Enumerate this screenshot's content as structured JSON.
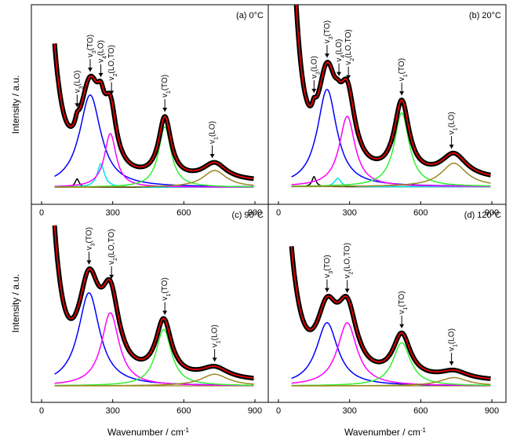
{
  "figure": {
    "xlabel": "Wavenumber / cm",
    "xlabel_sup": "-1",
    "ylabel": "Intensity / a.u."
  },
  "chart_data": [
    {
      "type": "line",
      "panel": "(a) 0°C",
      "title": "(a) 0°C",
      "xlabel": "Wavenumber / cm-1",
      "ylabel": "Intensity / a.u.",
      "xlim": [
        0,
        900
      ],
      "xticks": [
        0,
        300,
        600,
        900
      ],
      "yticks": "none",
      "grid": false,
      "annotations": [
        {
          "sub": "3",
          "mode": "(LO)",
          "x": 150
        },
        {
          "sub": "3",
          "mode": "(TO)",
          "x": 205
        },
        {
          "sub": "4",
          "mode": "(LO)",
          "x": 250
        },
        {
          "sub": "2",
          "mode": "(LO,TO)",
          "x": 295
        },
        {
          "sub": "1",
          "mode": "(TO)",
          "x": 520
        },
        {
          "sub": "1",
          "mode": "(LO)",
          "x": 720
        }
      ],
      "baseline": 0.05,
      "fit_peaks": [
        {
          "color": "#000000",
          "center": 150,
          "width": 10,
          "height": 0.05
        },
        {
          "color": "#0000ff",
          "center": 205,
          "width": 55,
          "height": 0.55
        },
        {
          "color": "#00e5e5",
          "center": 250,
          "width": 18,
          "height": 0.14
        },
        {
          "color": "#ff00ff",
          "center": 290,
          "width": 30,
          "height": 0.32
        },
        {
          "color": "#33ee33",
          "center": 520,
          "width": 32,
          "height": 0.36
        },
        {
          "color": "#998822",
          "center": 730,
          "width": 60,
          "height": 0.1
        }
      ]
    },
    {
      "type": "line",
      "panel": "(b) 20°C",
      "title": "(b) 20°C",
      "xlabel": "Wavenumber / cm-1",
      "ylabel": "",
      "xlim": [
        0,
        900
      ],
      "xticks": [
        0,
        300,
        600,
        900
      ],
      "yticks": "none",
      "grid": false,
      "annotations": [
        {
          "sub": "3",
          "mode": "(LO)",
          "x": 150
        },
        {
          "sub": "3",
          "mode": "(TO)",
          "x": 205
        },
        {
          "sub": "4",
          "mode": "(LO)",
          "x": 255
        },
        {
          "sub": "2",
          "mode": "(LO,TO)",
          "x": 295
        },
        {
          "sub": "1",
          "mode": "(TO)",
          "x": 520
        },
        {
          "sub": "1",
          "mode": "(LO)",
          "x": 730
        }
      ],
      "baseline": 0.06,
      "fit_peaks": [
        {
          "color": "#000000",
          "center": 150,
          "width": 10,
          "height": 0.06
        },
        {
          "color": "#0000ff",
          "center": 205,
          "width": 50,
          "height": 0.58
        },
        {
          "color": "#00e5e5",
          "center": 250,
          "width": 16,
          "height": 0.05
        },
        {
          "color": "#ff00ff",
          "center": 290,
          "width": 40,
          "height": 0.42
        },
        {
          "color": "#33ee33",
          "center": 520,
          "width": 38,
          "height": 0.44
        },
        {
          "color": "#998822",
          "center": 740,
          "width": 65,
          "height": 0.14
        }
      ]
    },
    {
      "type": "line",
      "panel": "(c) 90°C",
      "title": "(c) 90°C",
      "xlabel": "Wavenumber / cm-1",
      "ylabel": "Intensity / a.u.",
      "xlim": [
        0,
        900
      ],
      "xticks": [
        0,
        300,
        600,
        900
      ],
      "yticks": "none",
      "grid": false,
      "annotations": [
        {
          "sub": "3",
          "mode": "(TO)",
          "x": 200
        },
        {
          "sub": "2",
          "mode": "(LO,TO)",
          "x": 295
        },
        {
          "sub": "1",
          "mode": "(TO)",
          "x": 520
        },
        {
          "sub": "1",
          "mode": "(LO)",
          "x": 730
        }
      ],
      "baseline": 0.04,
      "fit_peaks": [
        {
          "color": "#0000ff",
          "center": 200,
          "width": 55,
          "height": 0.56
        },
        {
          "color": "#ff00ff",
          "center": 290,
          "width": 45,
          "height": 0.44
        },
        {
          "color": "#33ee33",
          "center": 515,
          "width": 40,
          "height": 0.34
        },
        {
          "color": "#998822",
          "center": 730,
          "width": 70,
          "height": 0.07
        }
      ]
    },
    {
      "type": "line",
      "panel": "(d) 120°C",
      "title": "(d) 120°C",
      "xlabel": "Wavenumber / cm-1",
      "ylabel": "",
      "xlim": [
        0,
        900
      ],
      "xticks": [
        0,
        300,
        600,
        900
      ],
      "yticks": "none",
      "grid": false,
      "annotations": [
        {
          "sub": "3",
          "mode": "(TO)",
          "x": 205
        },
        {
          "sub": "2",
          "mode": "(LO,TO)",
          "x": 290
        },
        {
          "sub": "1",
          "mode": "(TO)",
          "x": 520
        },
        {
          "sub": "1",
          "mode": "(LO)",
          "x": 730
        }
      ],
      "baseline": 0.04,
      "fit_peaks": [
        {
          "color": "#0000ff",
          "center": 205,
          "width": 55,
          "height": 0.38
        },
        {
          "color": "#ff00ff",
          "center": 290,
          "width": 50,
          "height": 0.38
        },
        {
          "color": "#33ee33",
          "center": 520,
          "width": 45,
          "height": 0.26
        },
        {
          "color": "#998822",
          "center": 740,
          "width": 70,
          "height": 0.05
        }
      ]
    }
  ],
  "style": {
    "measured_color": "#000000",
    "fit_color": "#ff0000"
  }
}
